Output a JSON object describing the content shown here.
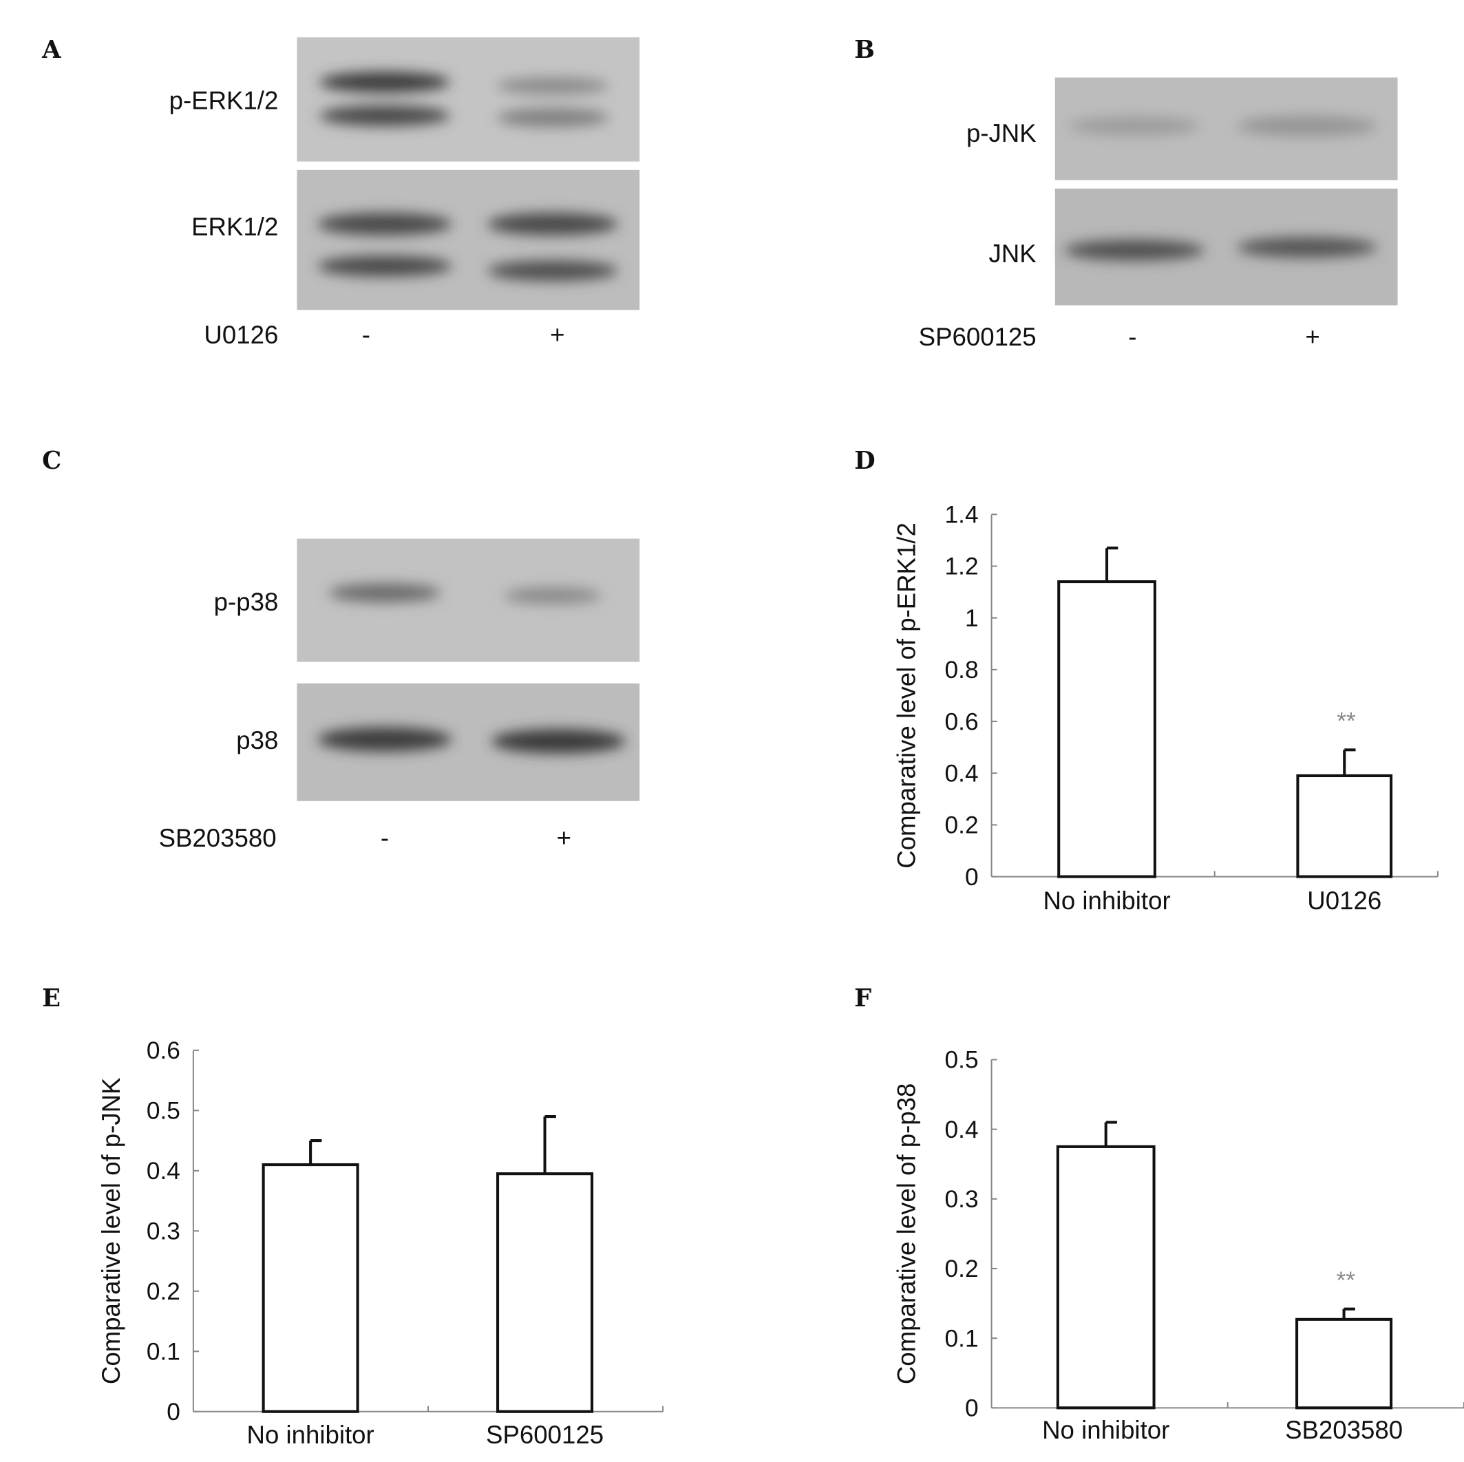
{
  "blots": [
    {
      "panel": "A",
      "rows": [
        "p-ERK1/2",
        "ERK1/2"
      ],
      "treatment": "U0126",
      "lanes": [
        "-",
        "+"
      ]
    },
    {
      "panel": "B",
      "rows": [
        "p-JNK",
        "JNK"
      ],
      "treatment": "SP600125",
      "lanes": [
        "-",
        "+"
      ]
    },
    {
      "panel": "C",
      "rows": [
        "p-p38",
        "p38"
      ],
      "treatment": "SB203580",
      "lanes": [
        "-",
        "+"
      ]
    }
  ],
  "chart_data": [
    {
      "panel": "D",
      "type": "bar",
      "categories": [
        "No inhibitor",
        "U0126"
      ],
      "values": [
        1.14,
        0.39
      ],
      "errors": [
        0.13,
        0.1
      ],
      "significance": [
        "",
        "**"
      ],
      "ylabel": "Comparative level of p-ERK1/2",
      "ylim": [
        0,
        1.4
      ],
      "yticks": [
        "0",
        "0.2",
        "0.4",
        "0.6",
        "0.8",
        "1",
        "1.2",
        "1.4"
      ],
      "grid": false
    },
    {
      "panel": "E",
      "type": "bar",
      "categories": [
        "No inhibitor",
        "SP600125"
      ],
      "values": [
        0.41,
        0.395
      ],
      "errors": [
        0.04,
        0.095
      ],
      "significance": [
        "",
        ""
      ],
      "ylabel": "Comparative level of p-JNK",
      "ylim": [
        0,
        0.6
      ],
      "yticks": [
        "0",
        "0.1",
        "0.2",
        "0.3",
        "0.4",
        "0.5",
        "0.6"
      ],
      "grid": false
    },
    {
      "panel": "F",
      "type": "bar",
      "categories": [
        "No inhibitor",
        "SB203580"
      ],
      "values": [
        0.375,
        0.127
      ],
      "errors": [
        0.035,
        0.015
      ],
      "significance": [
        "",
        "**"
      ],
      "ylabel": "Comparative level of p-p38",
      "ylim": [
        0,
        0.5
      ],
      "yticks": [
        "0",
        "0.1",
        "0.2",
        "0.3",
        "0.4",
        "0.5"
      ],
      "grid": false
    }
  ]
}
